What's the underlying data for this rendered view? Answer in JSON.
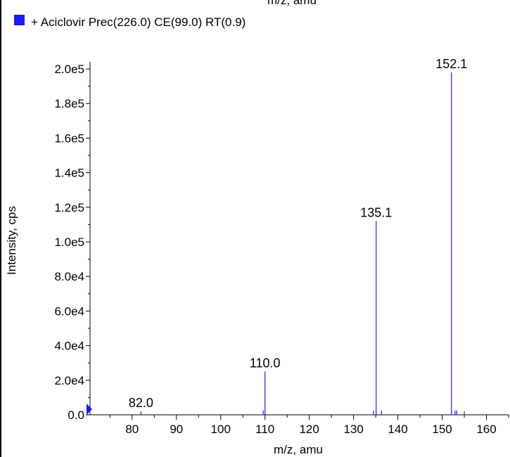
{
  "header_cut_text": "m/z, amu",
  "legend": {
    "text": "+ Aciclovir Prec(226.0) CE(99.0) RT(0.9)",
    "color": "#1a1aff"
  },
  "chart_data": {
    "type": "bar",
    "title": "",
    "xlabel": "m/z, amu",
    "ylabel": "Intensity, cps",
    "xlim": [
      70.5,
      165
    ],
    "ylim": [
      0,
      200000
    ],
    "x_ticks": [
      80,
      90,
      100,
      110,
      120,
      130,
      140,
      150,
      160
    ],
    "y_ticks": [
      {
        "value": 0,
        "label": "0.0"
      },
      {
        "value": 20000,
        "label": "2.0e4"
      },
      {
        "value": 40000,
        "label": "4.0e4"
      },
      {
        "value": 60000,
        "label": "6.0e4"
      },
      {
        "value": 80000,
        "label": "8.0e4"
      },
      {
        "value": 100000,
        "label": "1.0e5"
      },
      {
        "value": 120000,
        "label": "1.2e5"
      },
      {
        "value": 140000,
        "label": "1.4e5"
      },
      {
        "value": 160000,
        "label": "1.6e5"
      },
      {
        "value": 180000,
        "label": "1.8e5"
      },
      {
        "value": 200000,
        "label": "2.0e5"
      }
    ],
    "series": [
      {
        "color": "#1a1aff",
        "points": [
          {
            "x": 82.0,
            "y": 2000,
            "label": "82.0"
          },
          {
            "x": 109.6,
            "y": 2500
          },
          {
            "x": 110.0,
            "y": 25000,
            "label": "110.0"
          },
          {
            "x": 134.5,
            "y": 2500
          },
          {
            "x": 135.1,
            "y": 112000,
            "label": "135.1"
          },
          {
            "x": 136.3,
            "y": 2500
          },
          {
            "x": 152.1,
            "y": 198000,
            "label": "152.1"
          },
          {
            "x": 152.9,
            "y": 2500
          },
          {
            "x": 153.3,
            "y": 2500
          },
          {
            "x": 155.0,
            "y": 2000
          }
        ]
      }
    ],
    "grid": false
  }
}
